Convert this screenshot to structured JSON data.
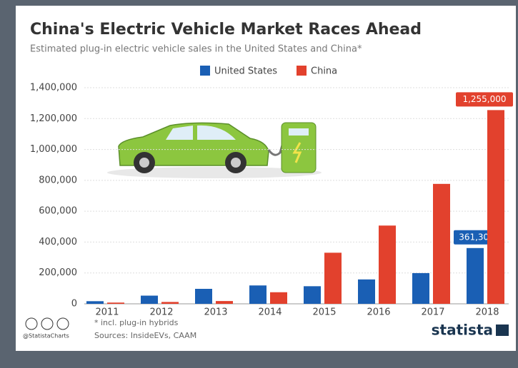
{
  "chart_data": {
    "type": "bar",
    "title": "China's Electric Vehicle Market Races Ahead",
    "subtitle": "Estimated plug-in electric vehicle sales in the United States and China*",
    "categories": [
      "2011",
      "2012",
      "2013",
      "2014",
      "2015",
      "2016",
      "2017",
      "2018"
    ],
    "series": [
      {
        "name": "United States",
        "color": "#1a5fb4",
        "values": [
          17000,
          53000,
          97000,
          119000,
          114000,
          158000,
          199000,
          361307
        ],
        "value_labels": [
          null,
          null,
          null,
          null,
          null,
          null,
          null,
          "361,307"
        ]
      },
      {
        "name": "China",
        "color": "#e2412d",
        "values": [
          8000,
          12000,
          18000,
          75000,
          331000,
          507000,
          777000,
          1255000
        ],
        "value_labels": [
          null,
          null,
          null,
          null,
          null,
          null,
          null,
          "1,255,000"
        ]
      }
    ],
    "ylim": [
      0,
      1400000
    ],
    "yticks": [
      0,
      {
        "value": 200000,
        "label": "200,000"
      },
      {
        "value": 400000,
        "label": "400,000"
      },
      {
        "value": 600000,
        "label": "600,000"
      },
      {
        "value": 800000,
        "label": "800,000"
      },
      {
        "value": 1000000,
        "label": "1,000,000"
      },
      {
        "value": 1200000,
        "label": "1,200,000"
      },
      {
        "value": 1400000,
        "label": "1,400,000"
      }
    ],
    "grid": true,
    "footnote": "* incl. plug-in hybrids",
    "source": "Sources: InsideEVs, CAAM",
    "handle": "@StatistaCharts",
    "brand": "statista"
  }
}
